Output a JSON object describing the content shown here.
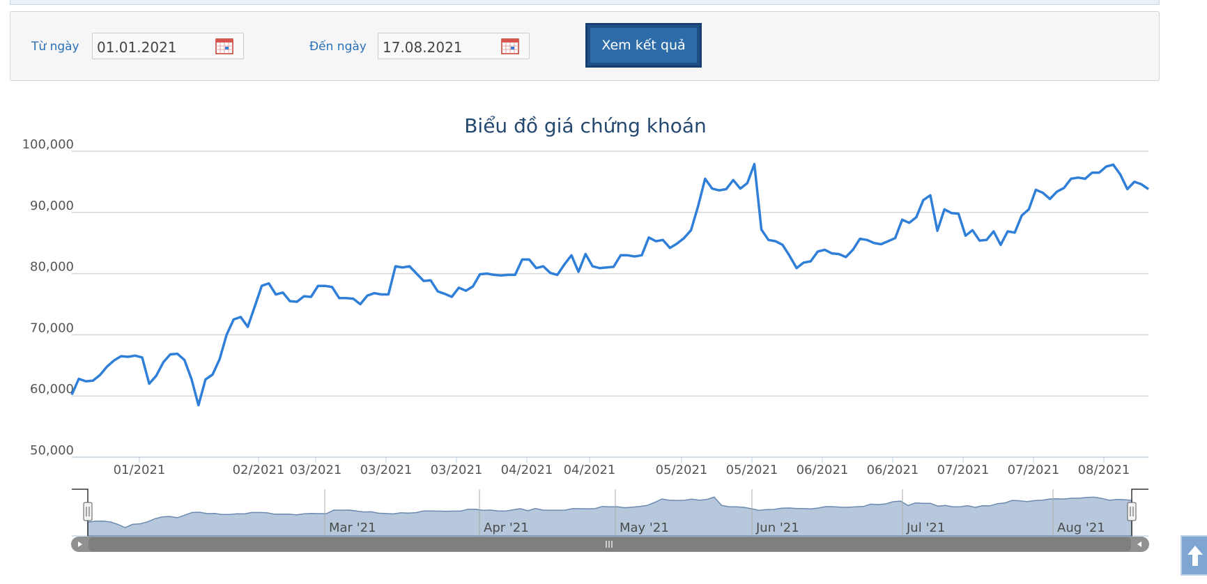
{
  "filter": {
    "from_label": "Từ ngày",
    "from_value": "01.01.2021",
    "to_label": "Đến ngày",
    "to_value": "17.08.2021",
    "submit_label": "Xem kết quả"
  },
  "colors": {
    "line": "#2f7ed8",
    "navigator_fill": "#b7c8dd",
    "navigator_line": "#6a8ab0",
    "title": "#24486f",
    "accent_button": "#2d6ca9"
  },
  "chart_data": {
    "type": "line",
    "title": "Biểu đồ giá chứng khoán",
    "xlabel": "",
    "ylabel": "",
    "ylim": [
      50000,
      100000
    ],
    "y_ticks": [
      "100,000",
      "90,000",
      "80,000",
      "70,000",
      "60,000",
      "50,000"
    ],
    "x_tick_labels": [
      "01/2021",
      "02/2021",
      "03/2021",
      "03/2021",
      "03/2021",
      "04/2021",
      "04/2021",
      "05/2021",
      "05/2021",
      "06/2021",
      "06/2021",
      "07/2021",
      "07/2021",
      "08/2021"
    ],
    "grid": true,
    "legend": "none",
    "series": [
      {
        "values": [
          60200,
          62800,
          62400,
          62500,
          63400,
          64800,
          65800,
          66500,
          66400,
          66600,
          66300,
          62000,
          63300,
          65500,
          66800,
          66900,
          65900,
          62800,
          58500,
          62700,
          63500,
          66000,
          70000,
          72500,
          72900,
          71300,
          74600,
          78000,
          78400,
          76600,
          76900,
          75500,
          75400,
          76300,
          76200,
          78000,
          78000,
          77800,
          76000,
          76000,
          75900,
          75000,
          76400,
          76800,
          76600,
          76600,
          81200,
          81000,
          81200,
          80000,
          78800,
          78900,
          77100,
          76700,
          76200,
          77700,
          77200,
          77900,
          79900,
          80000,
          79800,
          79700,
          79800,
          79800,
          82300,
          82300,
          80900,
          81200,
          80100,
          79800,
          81500,
          83000,
          80300,
          83200,
          81200,
          80900,
          81000,
          81100,
          83000,
          83000,
          82800,
          83000,
          85900,
          85300,
          85500,
          84200,
          84900,
          85800,
          87100,
          91000,
          95500,
          93900,
          93600,
          93800,
          95300,
          93900,
          94800,
          97900,
          87200,
          85500,
          85300,
          84700,
          82900,
          80900,
          81800,
          82000,
          83600,
          83900,
          83300,
          83200,
          82700,
          83900,
          85700,
          85500,
          85000,
          84800,
          85300,
          85800,
          88800,
          88300,
          89200,
          92000,
          92800,
          87000,
          90500,
          89900,
          89800,
          86200,
          87100,
          85400,
          85500,
          86900,
          84700,
          86900,
          86700,
          89500,
          90500,
          93700,
          93200,
          92200,
          93400,
          94000,
          95500,
          95700,
          95500,
          96500,
          96500,
          97500,
          97800,
          96200,
          93800,
          95000,
          94600,
          93800
        ]
      }
    ],
    "navigator": {
      "x_labels": [
        "Mar '21",
        "Apr '21",
        "May '21",
        "Jun '21",
        "Jul '21",
        "Aug '21"
      ]
    }
  },
  "icons": {
    "calendar": "calendar-icon",
    "scroll_top": "arrow-up-icon",
    "scroll_left": "triangle-left-icon",
    "scroll_right": "triangle-right-icon",
    "scroll_grip": "grip-icon"
  }
}
